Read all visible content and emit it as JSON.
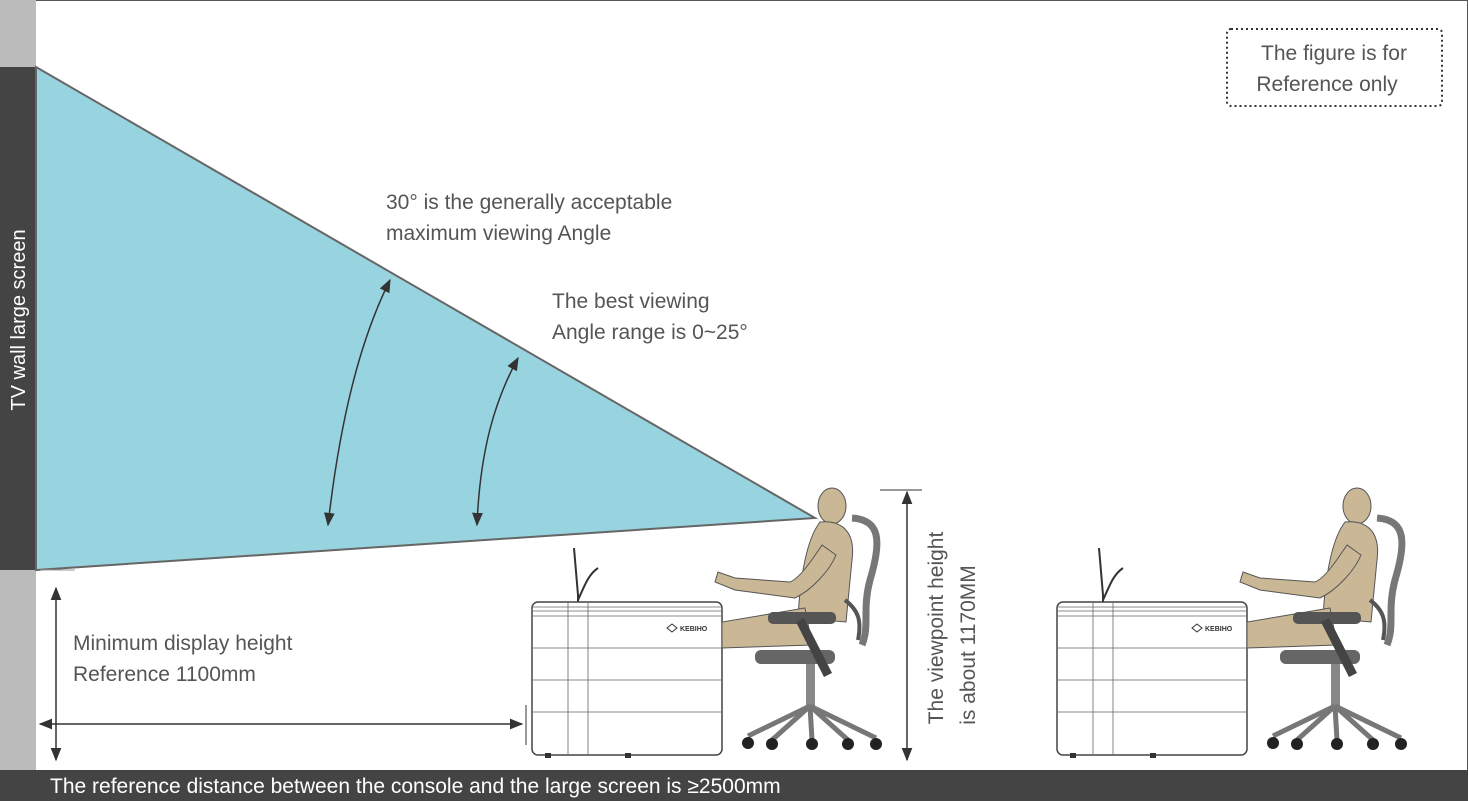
{
  "sidebar_label": "TV wall large screen",
  "note": {
    "lines": [
      "The figure is for",
      "Reference only"
    ]
  },
  "annotations": [
    {
      "lines": [
        "30° is the generally acceptable",
        "maximum viewing Angle"
      ]
    },
    {
      "lines": [
        "The best viewing",
        "Angle range is 0~25°"
      ]
    },
    {
      "lines": [
        "Minimum display height",
        "Reference 1100mm"
      ]
    },
    {
      "lines": [
        "The viewpoint height",
        "is about 1170MM"
      ]
    }
  ],
  "console_logo": "KEBIHO",
  "footer": "The reference distance between the console and the large screen is ≥2500mm"
}
